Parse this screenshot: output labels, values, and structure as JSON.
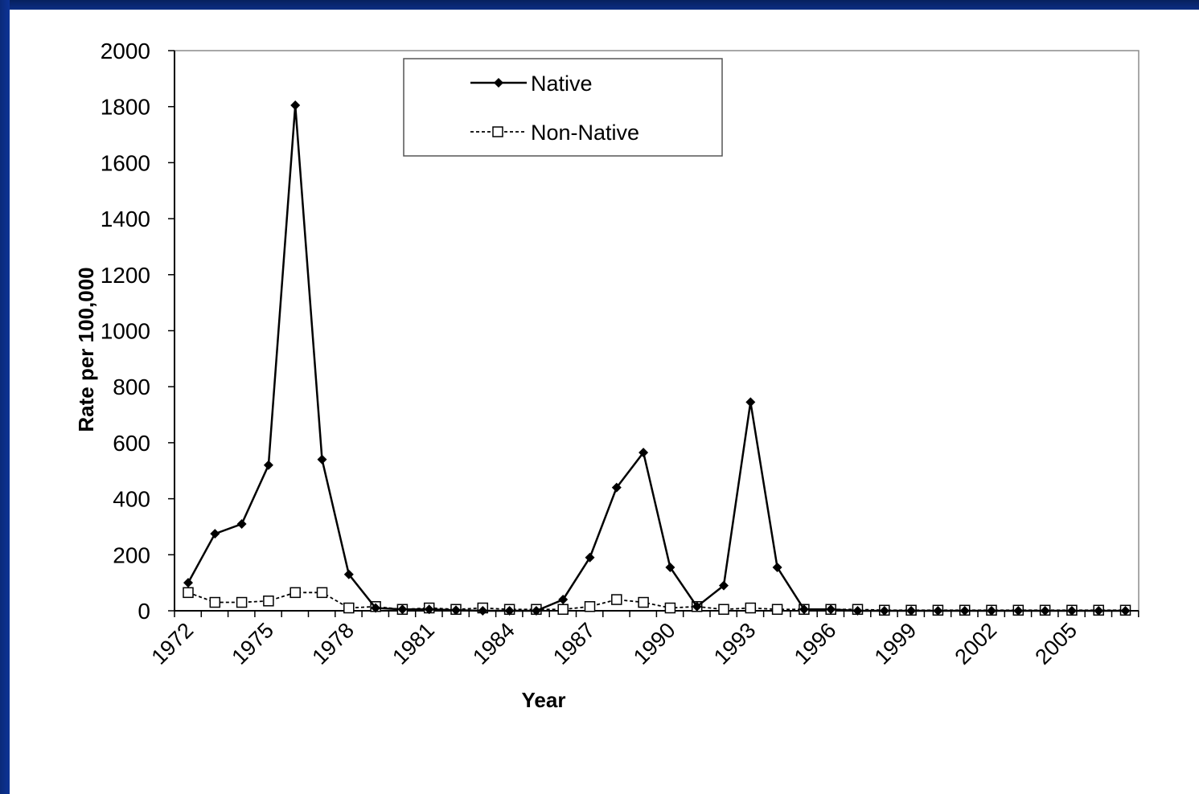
{
  "chart_data": {
    "type": "line",
    "title": "",
    "xlabel": "Year",
    "ylabel": "Rate per 100,000",
    "ylim": [
      0,
      2000
    ],
    "yticks": [
      0,
      200,
      400,
      600,
      800,
      1000,
      1200,
      1400,
      1600,
      1800,
      2000
    ],
    "xtick_labels": [
      "1972",
      "1975",
      "1978",
      "1981",
      "1984",
      "1987",
      "1990",
      "1993",
      "1996",
      "1999",
      "2002",
      "2005"
    ],
    "x": [
      1972,
      1973,
      1974,
      1975,
      1976,
      1977,
      1978,
      1979,
      1980,
      1981,
      1982,
      1983,
      1984,
      1985,
      1986,
      1987,
      1988,
      1989,
      1990,
      1991,
      1992,
      1993,
      1994,
      1995,
      1996,
      1997,
      1998,
      1999,
      2000,
      2001,
      2002,
      2003,
      2004,
      2005,
      2006,
      2007
    ],
    "grid": false,
    "legend_position": "top-center",
    "series": [
      {
        "name": "Native",
        "style": "solid",
        "marker": "filled-diamond",
        "color": "#000000",
        "values": [
          100,
          275,
          310,
          520,
          1805,
          540,
          130,
          10,
          5,
          5,
          2,
          0,
          0,
          0,
          40,
          190,
          440,
          565,
          155,
          15,
          90,
          745,
          155,
          5,
          5,
          0,
          0,
          0,
          0,
          0,
          0,
          0,
          0,
          0,
          0,
          0
        ]
      },
      {
        "name": "Non-Native",
        "style": "dashed",
        "marker": "open-square",
        "color": "#000000",
        "values": [
          65,
          30,
          30,
          35,
          65,
          65,
          10,
          15,
          5,
          10,
          5,
          10,
          5,
          5,
          5,
          15,
          40,
          30,
          10,
          15,
          5,
          10,
          5,
          5,
          5,
          5,
          2,
          2,
          2,
          2,
          2,
          2,
          2,
          2,
          2,
          2
        ]
      }
    ]
  },
  "colors": {
    "frame": "#0b2d83",
    "plot_background": "#ffffff",
    "axis": "#000000"
  }
}
